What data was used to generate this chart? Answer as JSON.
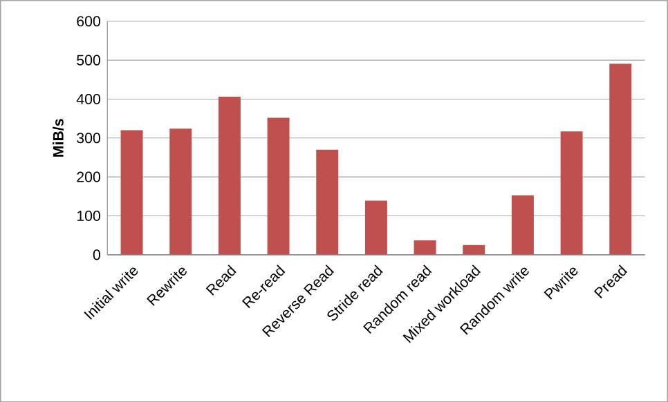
{
  "chart_data": {
    "type": "bar",
    "ylabel": "MiB/s",
    "categories": [
      "Initial write",
      "Rewrite",
      "Read",
      "Re-read",
      "Reverse Read",
      "Stride read",
      "Random read",
      "Mixed workload",
      "Random write",
      "Pwrite",
      "Pread"
    ],
    "values": [
      320,
      324,
      406,
      352,
      270,
      139,
      37,
      25,
      153,
      317,
      491
    ],
    "color": "#c0504d",
    "ylim": [
      0,
      600
    ],
    "yticks": [
      0,
      100,
      200,
      300,
      400,
      500,
      600
    ],
    "grid": "y"
  }
}
